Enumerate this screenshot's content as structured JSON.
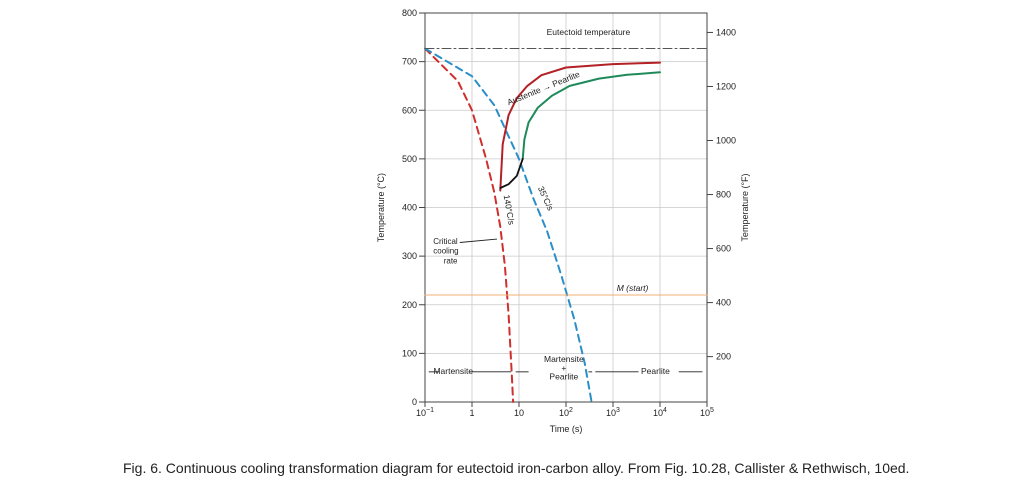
{
  "chart_data": {
    "type": "line",
    "xscale": "log",
    "xlabel": "Time (s)",
    "ylabel": "Temperature (°C)",
    "y2label": "Temperature (°F)",
    "xlim": [
      0.1,
      100000
    ],
    "ylim": [
      0,
      800
    ],
    "y2lim": [
      32,
      1472
    ],
    "x_tick_labels": [
      "10−1",
      "1",
      "10",
      "102",
      "103",
      "104",
      "105"
    ],
    "x_ticks": [
      0.1,
      1,
      10,
      100,
      1000,
      10000,
      100000
    ],
    "y_ticks": [
      0,
      100,
      200,
      300,
      400,
      500,
      600,
      700,
      800
    ],
    "y2_ticks": [
      200,
      400,
      600,
      800,
      1000,
      1200,
      1400
    ],
    "grid": true,
    "series": [
      {
        "name": "140°C/s",
        "color": "#d0302c",
        "style": "dashed",
        "x": [
          0.1,
          0.5,
          1,
          2,
          3,
          4,
          5,
          6,
          7,
          7.5
        ],
        "y": [
          727,
          660,
          600,
          500,
          430,
          360,
          280,
          180,
          60,
          0
        ]
      },
      {
        "name": "35°C/s",
        "color": "#2a8fc8",
        "style": "dashed",
        "x": [
          0.1,
          1,
          3,
          10,
          20,
          40,
          80,
          150,
          250,
          350
        ],
        "y": [
          727,
          670,
          610,
          500,
          420,
          350,
          260,
          170,
          80,
          0
        ]
      },
      {
        "color": "#b32025",
        "style": "solid",
        "x": [
          4,
          4.5,
          6,
          9,
          15,
          30,
          100,
          1000,
          10000
        ],
        "y": [
          435,
          530,
          590,
          625,
          650,
          672,
          688,
          695,
          698
        ]
      },
      {
        "color": "#1e8a5a",
        "style": "solid",
        "x": [
          12,
          13,
          16,
          25,
          50,
          120,
          500,
          2000,
          10000
        ],
        "y": [
          500,
          540,
          575,
          605,
          630,
          650,
          665,
          673,
          678
        ]
      },
      {
        "color": "#111111",
        "style": "solid",
        "x": [
          4,
          6,
          9,
          12
        ],
        "y": [
          440,
          448,
          465,
          500
        ]
      },
      {
        "color": "#f0b070",
        "style": "solid",
        "x": [
          0.1,
          100000
        ],
        "y": [
          220,
          220
        ]
      },
      {
        "color": "#555555",
        "style": "dash-dot",
        "x": [
          0.1,
          100000
        ],
        "y": [
          727,
          727
        ]
      }
    ],
    "annotations": {
      "eutectoid": "Eutectoid temperature",
      "austenite": "Austenite",
      "arrow": "→",
      "pearlite_top": "Pearlite",
      "rate_140": "140°C/s",
      "rate_35": "35°C/s",
      "critical_1": "Critical",
      "critical_2": "cooling",
      "critical_3": "rate",
      "mstart": "M (start)",
      "martensite": "Martensite",
      "mart_plus": "Martensite",
      "plus": "+",
      "plus_pearlite": "Pearlite",
      "pearlite_bottom": "Pearlite"
    }
  },
  "caption": "Fig. 6. Continuous cooling transformation diagram for eutectoid iron-carbon alloy. From Fig. 10.28, Callister & Rethwisch, 10ed."
}
